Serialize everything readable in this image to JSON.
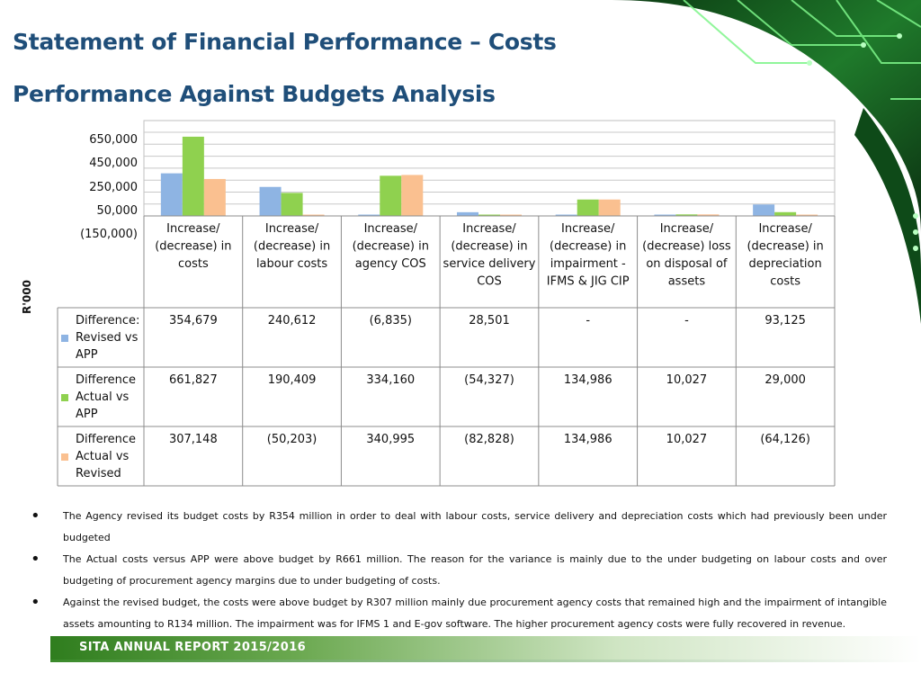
{
  "titles": {
    "main": "Statement of Financial Performance – Costs",
    "sub": "Performance Against Budgets Analysis"
  },
  "chart_data": {
    "type": "bar",
    "ylabel": "R'000",
    "yticks": [
      "650,000",
      "450,000",
      "250,000",
      "50,000",
      "(150,000)"
    ],
    "ytick_values": [
      650000,
      450000,
      250000,
      50000,
      -150000
    ],
    "ylim": [
      -150000,
      750000
    ],
    "categories": [
      [
        "Increase/",
        "(decrease) in",
        "costs"
      ],
      [
        "Increase/",
        "(decrease) in",
        "labour costs"
      ],
      [
        "Increase/",
        "(decrease) in",
        "agency COS"
      ],
      [
        "Increase/",
        "(decrease) in",
        "service delivery",
        "COS"
      ],
      [
        "Increase/",
        "(decrease) in",
        "impairment -",
        "IFMS & JIG CIP"
      ],
      [
        "Increase/",
        "(decrease) loss",
        "on disposal of",
        "assets"
      ],
      [
        "Increase/",
        "(decrease) in",
        "depreciation",
        "costs"
      ]
    ],
    "series": [
      {
        "name": [
          "Difference:",
          "Revised vs",
          "APP"
        ],
        "color": "#8eb4e3",
        "values": [
          354679,
          240612,
          -6835,
          28501,
          0,
          0,
          93125
        ],
        "labels": [
          "354,679",
          "240,612",
          "(6,835)",
          "28,501",
          "-",
          "-",
          "93,125"
        ]
      },
      {
        "name": [
          "Difference",
          "Actual vs",
          "APP"
        ],
        "color": "#8fd14f",
        "values": [
          661827,
          190409,
          334160,
          -54327,
          134986,
          10027,
          29000
        ],
        "labels": [
          "661,827",
          "190,409",
          "334,160",
          "(54,327)",
          "134,986",
          "10,027",
          "29,000"
        ]
      },
      {
        "name": [
          "Difference",
          "Actual  vs",
          "Revised"
        ],
        "color": "#fac090",
        "values": [
          307148,
          -50203,
          340995,
          -82828,
          134986,
          10027,
          -64126
        ],
        "labels": [
          "307,148",
          "(50,203)",
          "340,995",
          "(82,828)",
          "134,986",
          "10,027",
          "(64,126)"
        ]
      }
    ]
  },
  "bullets": [
    "The Agency revised its budget costs by R354 million in order to deal with labour costs, service delivery and depreciation costs which had previously been under budgeted",
    "The Actual costs versus APP were above budget by R661 million. The reason for the variance is mainly due to the under budgeting on labour costs and over  budgeting of procurement  agency margins due to under  budgeting of costs.",
    "Against the revised budget, the costs were above budget by R307 million mainly due procurement  agency costs that remained  high and the impairment of intangible assets amounting to R134 million. The impairment was for IFMS 1 and E-gov software. The higher procurement agency costs were fully recovered  in revenue."
  ],
  "footer": {
    "text": "SITA ANNUAL REPORT 2015/2016"
  }
}
